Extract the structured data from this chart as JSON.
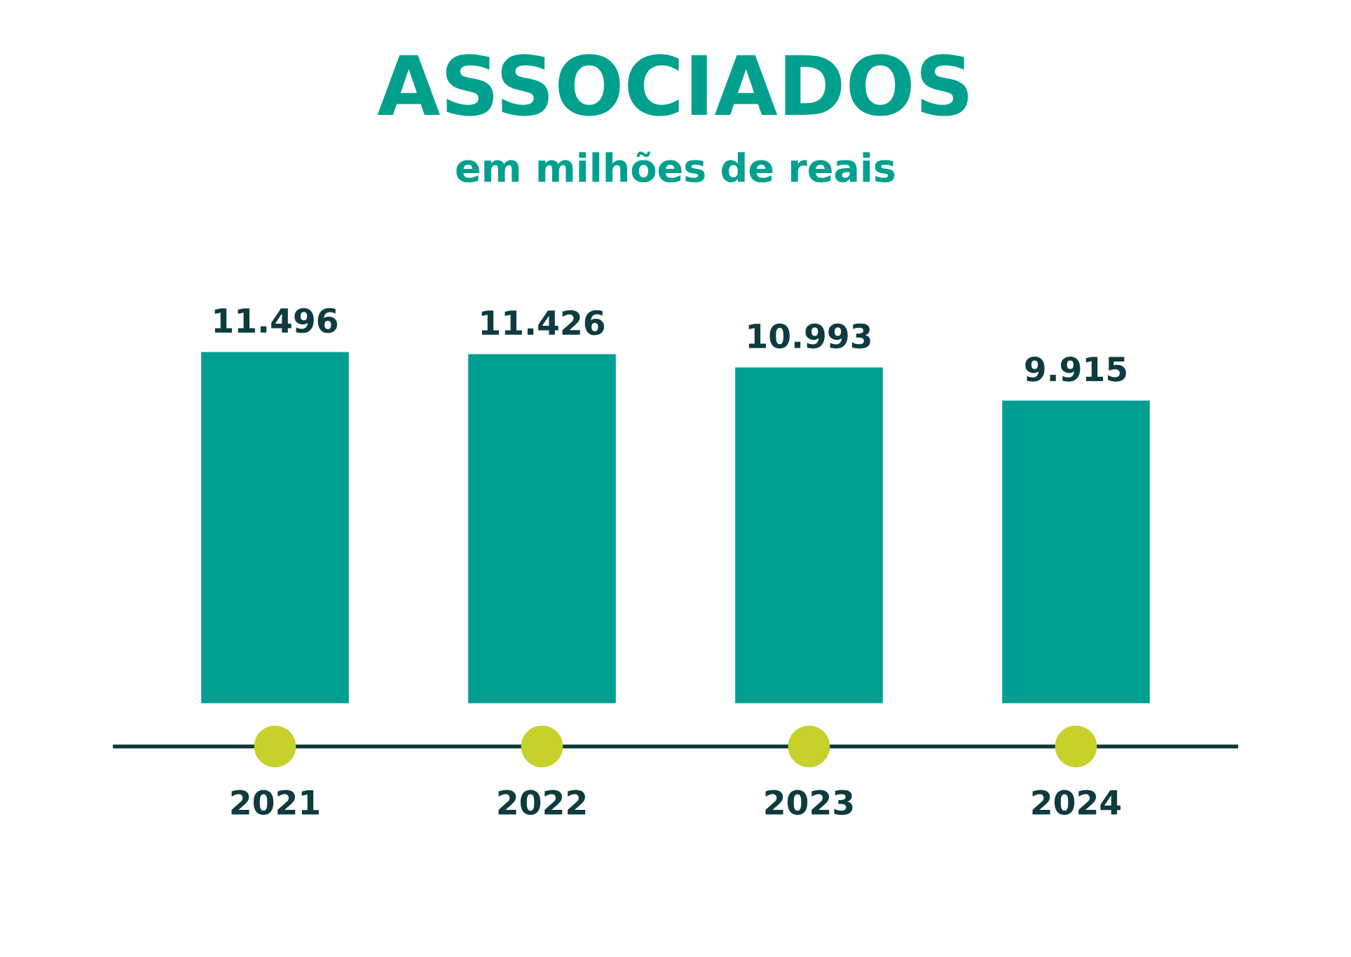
{
  "chart_data": {
    "type": "bar",
    "title": "ASSOCIADOS",
    "subtitle": "em milhões de reais",
    "categories": [
      "2021",
      "2022",
      "2023",
      "2024"
    ],
    "values": [
      11.496,
      11.426,
      10.993,
      9.915
    ],
    "value_labels": [
      "11.496",
      "11.426",
      "10.993",
      "9.915"
    ],
    "color": "#009e93",
    "grid": false,
    "legend": false
  }
}
